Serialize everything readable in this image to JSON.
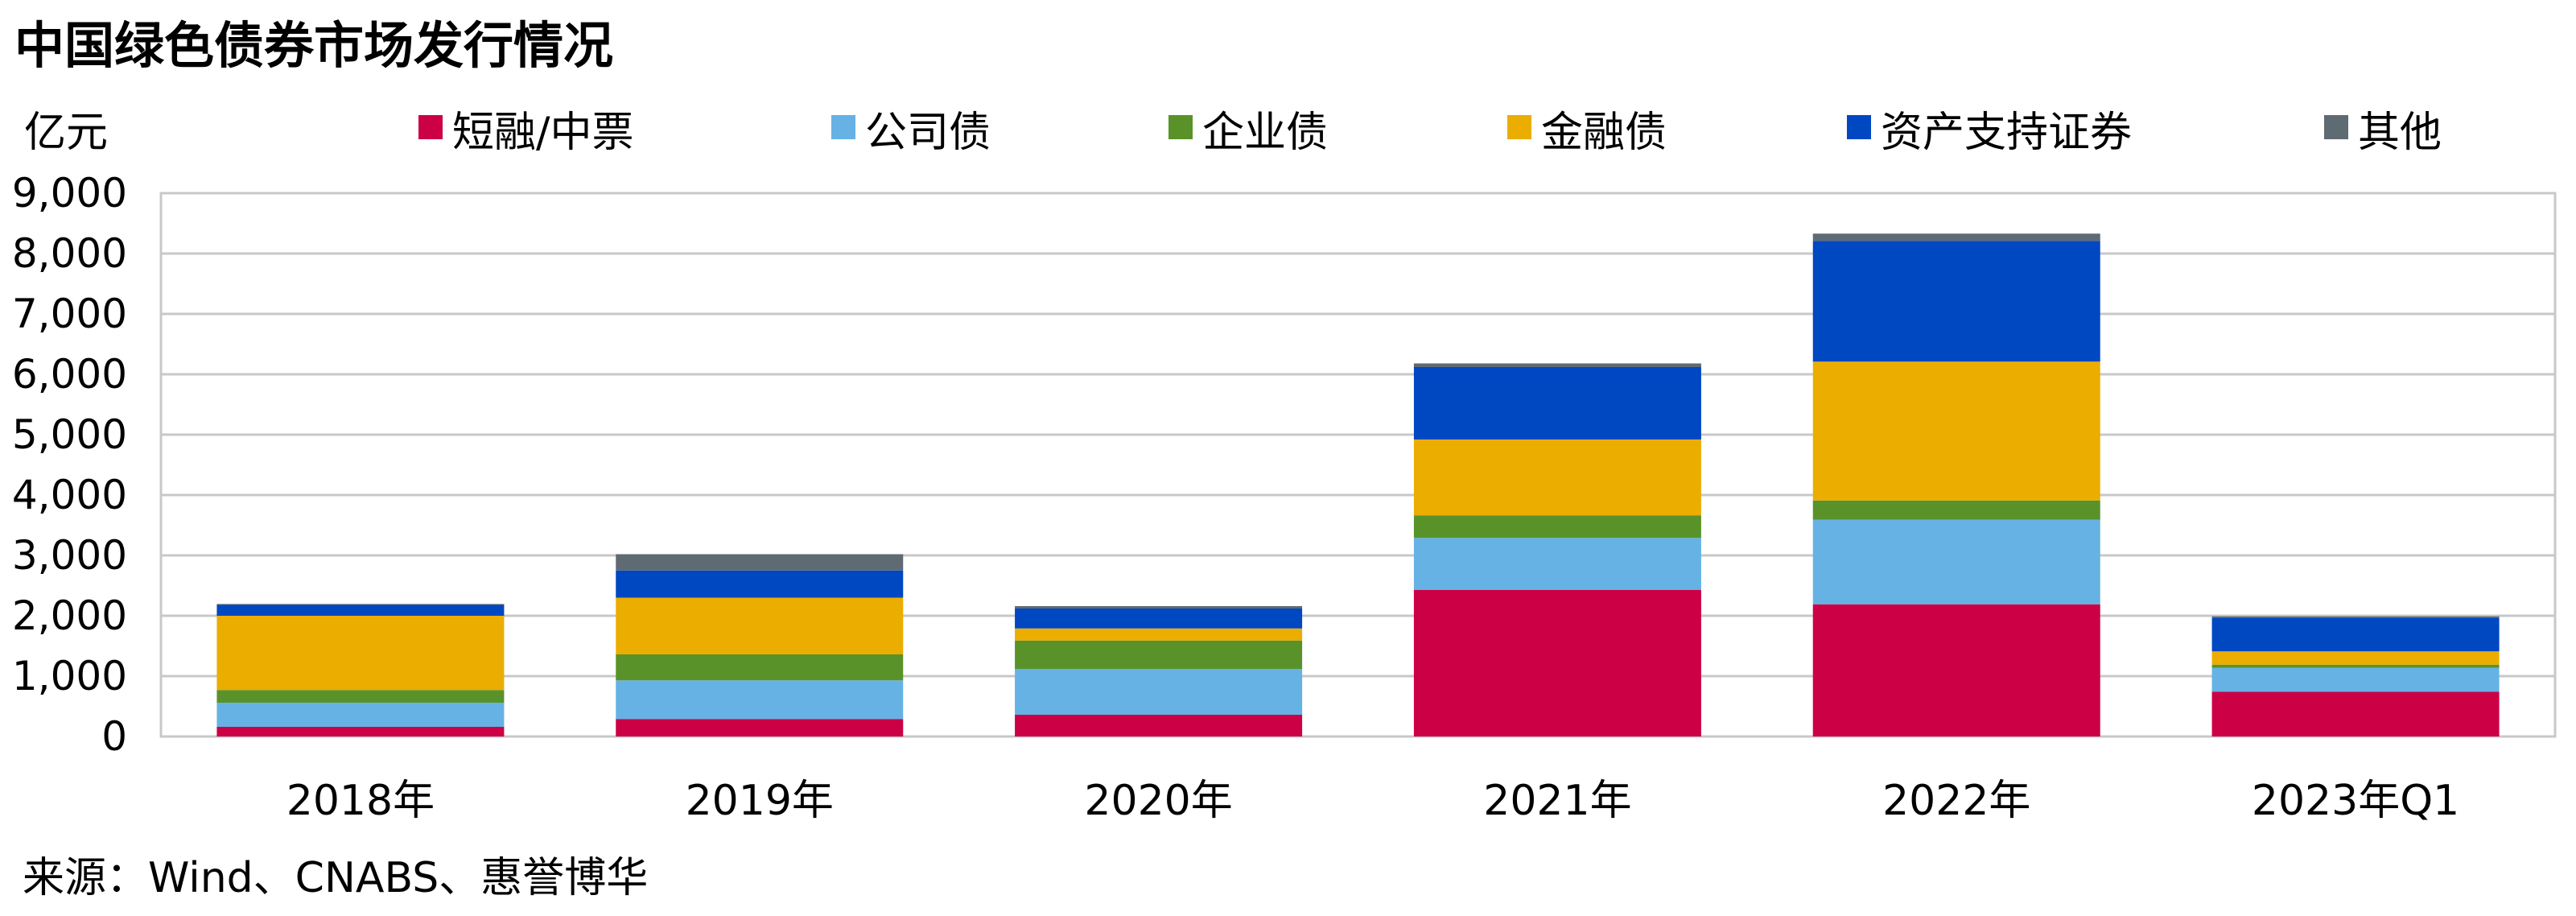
{
  "chart_data": {
    "type": "bar",
    "stacked": true,
    "title": "中国绿色债券市场发行情况",
    "ylabel": "亿元",
    "ylim": [
      0,
      9000
    ],
    "yticks": [
      0,
      1000,
      2000,
      3000,
      4000,
      5000,
      6000,
      7000,
      8000,
      9000
    ],
    "ytick_labels": [
      "0",
      "1,000",
      "2,000",
      "3,000",
      "4,000",
      "5,000",
      "6,000",
      "7,000",
      "8,000",
      "9,000"
    ],
    "grid": true,
    "legend_position": "top",
    "categories": [
      "2018年",
      "2019年",
      "2020年",
      "2021年",
      "2022年",
      "2023年Q1"
    ],
    "series": [
      {
        "name": "短融/中票",
        "color": "#CC0044",
        "values": [
          160,
          290,
          360,
          2430,
          2190,
          740
        ]
      },
      {
        "name": "公司债",
        "color": "#66B2E4",
        "values": [
          400,
          640,
          760,
          860,
          1400,
          400
        ]
      },
      {
        "name": "企业债",
        "color": "#5A922A",
        "values": [
          210,
          430,
          470,
          370,
          320,
          50
        ]
      },
      {
        "name": "金融债",
        "color": "#EBAD00",
        "values": [
          1230,
          940,
          200,
          1260,
          2300,
          220
        ]
      },
      {
        "name": "资产支持证券",
        "color": "#0047C2",
        "values": [
          180,
          450,
          330,
          1200,
          2000,
          560
        ]
      },
      {
        "name": "其他",
        "color": "#5F6B73",
        "values": [
          15,
          270,
          40,
          60,
          120,
          20
        ]
      }
    ],
    "source": "来源：Wind、CNABS、惠誉博华"
  }
}
